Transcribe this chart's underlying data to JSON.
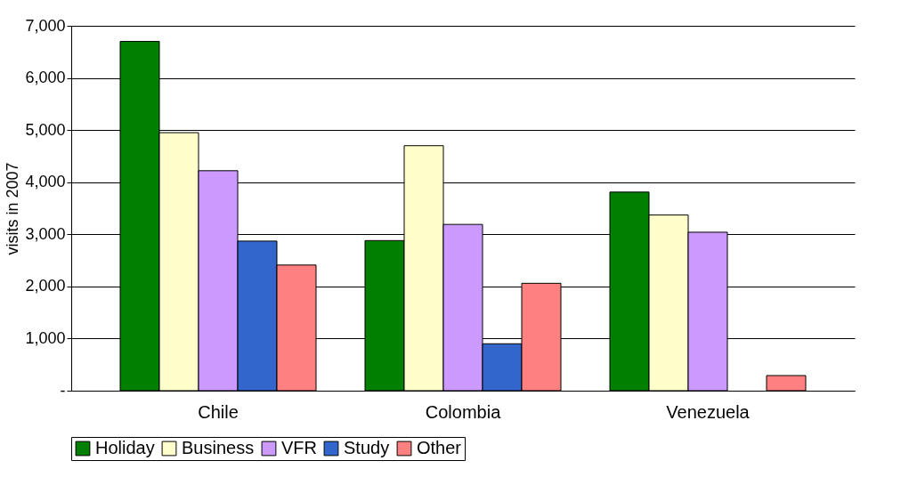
{
  "chart_data": {
    "type": "bar",
    "ylabel": "visits in 2007",
    "categories": [
      "Chile",
      "Colombia",
      "Venezuela"
    ],
    "series": [
      {
        "name": "Holiday",
        "color": "#007f00",
        "values": [
          6700,
          2880,
          3810
        ]
      },
      {
        "name": "Business",
        "color": "#ffffcc",
        "values": [
          4950,
          4700,
          3370
        ]
      },
      {
        "name": "VFR",
        "color": "#cc99ff",
        "values": [
          4220,
          3190,
          3040
        ]
      },
      {
        "name": "Study",
        "color": "#3366cc",
        "values": [
          2870,
          900,
          null
        ]
      },
      {
        "name": "Other",
        "color": "#ff8080",
        "values": [
          2410,
          2060,
          290
        ]
      }
    ],
    "ylim": [
      0,
      7000
    ],
    "yticks": [
      {
        "value": 0,
        "label": "-"
      },
      {
        "value": 1000,
        "label": "1,000"
      },
      {
        "value": 2000,
        "label": "2,000"
      },
      {
        "value": 3000,
        "label": "3,000"
      },
      {
        "value": 4000,
        "label": "4,000"
      },
      {
        "value": 5000,
        "label": "5,000"
      },
      {
        "value": 6000,
        "label": "6,000"
      },
      {
        "value": 7000,
        "label": "7,000"
      }
    ],
    "grid": "y",
    "legend": "bottom"
  }
}
